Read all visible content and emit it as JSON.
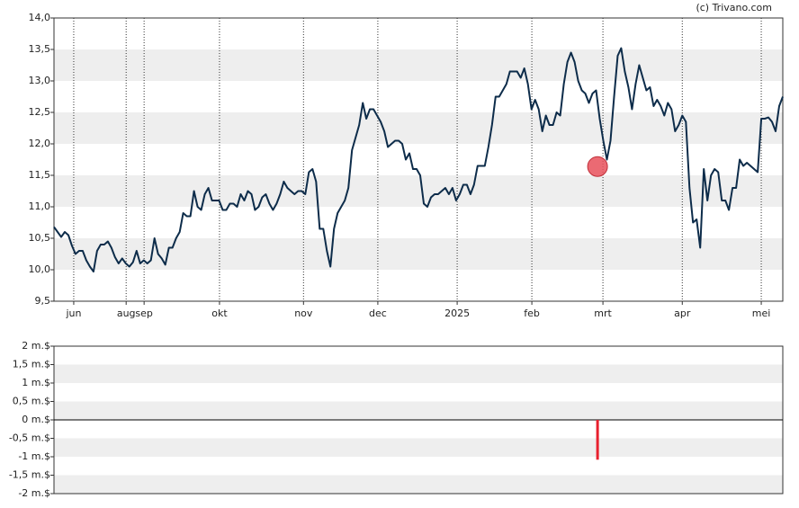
{
  "chart_data": [
    {
      "type": "line",
      "annotation": "(c) Trivano.com",
      "xlim": [
        0,
        203
      ],
      "xticks": [
        {
          "value": 5.5,
          "label": "jun"
        },
        {
          "value": 20.1,
          "label": "aug"
        },
        {
          "value": 25.1,
          "label": "sep"
        },
        {
          "value": 46.1,
          "label": "okt"
        },
        {
          "value": 69.5,
          "label": "nov"
        },
        {
          "value": 90.2,
          "label": "dec"
        },
        {
          "value": 112.3,
          "label": "2025"
        },
        {
          "value": 133.1,
          "label": "feb"
        },
        {
          "value": 152.9,
          "label": "mrt"
        },
        {
          "value": 175.0,
          "label": "apr"
        },
        {
          "value": 197.0,
          "label": "mei"
        }
      ],
      "ylim": [
        9.5,
        14
      ],
      "yticks": [
        {
          "value": 9.5,
          "label": "9,5"
        },
        {
          "value": 10,
          "label": "10,0"
        },
        {
          "value": 10.5,
          "label": "10,5"
        },
        {
          "value": 11,
          "label": "11,0"
        },
        {
          "value": 11.5,
          "label": "11,5"
        },
        {
          "value": 12,
          "label": "12,0"
        },
        {
          "value": 12.5,
          "label": "12,5"
        },
        {
          "value": 13,
          "label": "13,0"
        },
        {
          "value": 13.5,
          "label": "13,5"
        },
        {
          "value": 14,
          "label": "14,0"
        }
      ],
      "color": "#0d2c4a",
      "marker": {
        "x": 151.4,
        "y": 11.64,
        "color": "#e8505b"
      },
      "values": [
        10.68,
        10.6,
        10.52,
        10.6,
        10.55,
        10.38,
        10.25,
        10.3,
        10.3,
        10.15,
        10.05,
        9.97,
        10.3,
        10.4,
        10.4,
        10.45,
        10.35,
        10.2,
        10.1,
        10.18,
        10.1,
        10.05,
        10.12,
        10.3,
        10.1,
        10.15,
        10.1,
        10.15,
        10.5,
        10.25,
        10.18,
        10.08,
        10.35,
        10.35,
        10.5,
        10.6,
        10.9,
        10.85,
        10.85,
        11.25,
        11.0,
        10.95,
        11.2,
        11.3,
        11.1,
        11.1,
        11.1,
        10.95,
        10.95,
        11.05,
        11.05,
        11.0,
        11.2,
        11.1,
        11.25,
        11.2,
        10.95,
        11.0,
        11.15,
        11.2,
        11.05,
        10.95,
        11.05,
        11.2,
        11.4,
        11.3,
        11.25,
        11.2,
        11.25,
        11.25,
        11.2,
        11.55,
        11.6,
        11.4,
        10.65,
        10.65,
        10.3,
        10.05,
        10.65,
        10.9,
        11.0,
        11.1,
        11.3,
        11.9,
        12.1,
        12.3,
        12.65,
        12.4,
        12.55,
        12.55,
        12.45,
        12.35,
        12.2,
        11.95,
        12.0,
        12.05,
        12.05,
        12.0,
        11.75,
        11.85,
        11.6,
        11.6,
        11.5,
        11.05,
        11.0,
        11.15,
        11.2,
        11.2,
        11.25,
        11.3,
        11.2,
        11.3,
        11.1,
        11.2,
        11.35,
        11.35,
        11.2,
        11.35,
        11.65,
        11.65,
        11.65,
        11.95,
        12.3,
        12.75,
        12.75,
        12.85,
        12.95,
        13.15,
        13.15,
        13.15,
        13.05,
        13.2,
        12.95,
        12.55,
        12.7,
        12.55,
        12.2,
        12.45,
        12.3,
        12.3,
        12.5,
        12.45,
        12.95,
        13.3,
        13.45,
        13.3,
        13.0,
        12.85,
        12.8,
        12.65,
        12.8,
        12.85,
        12.4,
        12.05,
        11.75,
        12.05,
        12.75,
        13.4,
        13.52,
        13.15,
        12.9,
        12.55,
        12.95,
        13.25,
        13.05,
        12.85,
        12.9,
        12.6,
        12.7,
        12.6,
        12.45,
        12.65,
        12.55,
        12.2,
        12.3,
        12.45,
        12.35,
        11.3,
        10.75,
        10.8,
        10.35,
        11.6,
        11.1,
        11.5,
        11.6,
        11.55,
        11.1,
        11.1,
        10.95,
        11.3,
        11.3,
        11.75,
        11.65,
        11.7,
        11.65,
        11.6,
        11.55,
        12.4,
        12.4,
        12.42,
        12.35,
        12.2,
        12.6,
        12.75
      ]
    },
    {
      "type": "bar",
      "xlim": [
        0,
        203
      ],
      "ylim": [
        -2,
        2
      ],
      "yticks": [
        {
          "value": -2,
          "label": "-2 m.$"
        },
        {
          "value": -1.5,
          "label": "-1,5 m.$"
        },
        {
          "value": -1,
          "label": "-1 m.$"
        },
        {
          "value": -0.5,
          "label": "-0,5 m.$"
        },
        {
          "value": 0,
          "label": "0 m.$"
        },
        {
          "value": 0.5,
          "label": "0,5 m.$"
        },
        {
          "value": 1,
          "label": "1 m.$"
        },
        {
          "value": 1.5,
          "label": "1,5 m.$"
        },
        {
          "value": 2,
          "label": "2 m.$"
        }
      ],
      "color": "#e8202e",
      "x": [
        151.4
      ],
      "values": [
        -1.08
      ]
    }
  ]
}
